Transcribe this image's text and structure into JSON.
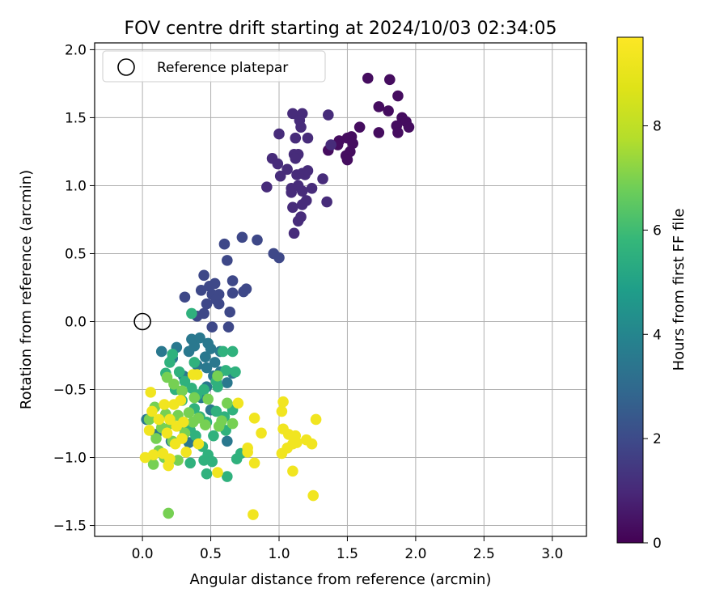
{
  "chart_data": {
    "type": "scatter",
    "title": "FOV centre drift starting at 2024/10/03 02:34:05",
    "xlabel": "Angular distance from reference (arcmin)",
    "ylabel": "Rotation from reference (arcmin)",
    "xlim": [
      -0.35,
      3.25
    ],
    "ylim": [
      -1.58,
      2.05
    ],
    "xticks": [
      "0.0",
      "0.5",
      "1.0",
      "1.5",
      "2.0",
      "2.5",
      "3.0"
    ],
    "yticks": [
      "−1.5",
      "−1.0",
      "−0.5",
      "0.0",
      "0.5",
      "1.0",
      "1.5",
      "2.0"
    ],
    "grid": true,
    "legend": {
      "placement": "upper-left",
      "entries": [
        "Reference platepar"
      ]
    },
    "reference_point": {
      "x": 0.0,
      "y": 0.0
    },
    "colorbar": {
      "label": "Hours from first FF file",
      "colormap": "viridis",
      "range": [
        0,
        9.7
      ],
      "ticks": [
        "0",
        "2",
        "4",
        "6",
        "8"
      ]
    },
    "series": [
      {
        "color_value": 0.3,
        "points": [
          [
            1.65,
            1.79
          ],
          [
            1.81,
            1.78
          ],
          [
            1.87,
            1.66
          ],
          [
            1.73,
            1.58
          ],
          [
            1.8,
            1.55
          ],
          [
            1.9,
            1.5
          ],
          [
            1.93,
            1.47
          ],
          [
            1.95,
            1.43
          ],
          [
            1.86,
            1.44
          ],
          [
            1.87,
            1.39
          ],
          [
            1.73,
            1.39
          ],
          [
            1.59,
            1.43
          ],
          [
            1.53,
            1.36
          ],
          [
            1.5,
            1.35
          ],
          [
            1.44,
            1.33
          ],
          [
            1.43,
            1.3
          ],
          [
            1.54,
            1.31
          ],
          [
            1.52,
            1.25
          ],
          [
            1.36,
            1.26
          ],
          [
            1.49,
            1.22
          ],
          [
            1.5,
            1.19
          ]
        ]
      },
      {
        "color_value": 1.1,
        "points": [
          [
            1.1,
            1.53
          ],
          [
            1.17,
            1.53
          ],
          [
            1.36,
            1.52
          ],
          [
            1.15,
            1.48
          ],
          [
            1.16,
            1.43
          ],
          [
            1.0,
            1.38
          ],
          [
            1.12,
            1.35
          ],
          [
            1.21,
            1.35
          ],
          [
            1.38,
            1.3
          ],
          [
            1.11,
            1.23
          ],
          [
            1.14,
            1.23
          ],
          [
            1.12,
            1.2
          ],
          [
            0.95,
            1.2
          ],
          [
            0.99,
            1.16
          ],
          [
            1.06,
            1.12
          ],
          [
            1.13,
            1.08
          ],
          [
            1.17,
            1.09
          ],
          [
            1.19,
            1.08
          ],
          [
            1.21,
            1.11
          ],
          [
            1.01,
            1.07
          ],
          [
            1.32,
            1.05
          ],
          [
            1.14,
            1.0
          ],
          [
            1.09,
            0.98
          ],
          [
            1.17,
            0.96
          ],
          [
            1.09,
            0.95
          ],
          [
            1.24,
            0.98
          ],
          [
            0.91,
            0.99
          ],
          [
            1.2,
            0.89
          ],
          [
            1.17,
            0.86
          ],
          [
            1.1,
            0.84
          ],
          [
            1.35,
            0.88
          ],
          [
            1.16,
            0.77
          ],
          [
            1.14,
            0.74
          ],
          [
            1.11,
            0.65
          ]
        ]
      },
      {
        "color_value": 1.9,
        "points": [
          [
            0.6,
            0.57
          ],
          [
            0.73,
            0.62
          ],
          [
            0.84,
            0.6
          ],
          [
            0.96,
            0.5
          ],
          [
            1.0,
            0.47
          ],
          [
            0.62,
            0.45
          ],
          [
            0.45,
            0.34
          ],
          [
            0.53,
            0.28
          ],
          [
            0.66,
            0.3
          ],
          [
            0.49,
            0.26
          ],
          [
            0.43,
            0.23
          ],
          [
            0.51,
            0.2
          ],
          [
            0.74,
            0.22
          ],
          [
            0.76,
            0.24
          ],
          [
            0.56,
            0.2
          ],
          [
            0.66,
            0.21
          ],
          [
            0.54,
            0.16
          ],
          [
            0.31,
            0.18
          ],
          [
            0.56,
            0.13
          ],
          [
            0.47,
            0.13
          ],
          [
            0.64,
            0.07
          ],
          [
            0.45,
            0.06
          ],
          [
            0.4,
            0.04
          ],
          [
            0.63,
            -0.04
          ],
          [
            0.51,
            -0.04
          ]
        ]
      },
      {
        "color_value": 3.5,
        "points": [
          [
            0.14,
            -0.22
          ],
          [
            0.25,
            -0.19
          ],
          [
            0.34,
            -0.22
          ],
          [
            0.38,
            -0.18
          ],
          [
            0.36,
            -0.13
          ],
          [
            0.42,
            -0.12
          ],
          [
            0.48,
            -0.16
          ],
          [
            0.5,
            -0.2
          ],
          [
            0.57,
            -0.22
          ],
          [
            0.46,
            -0.26
          ],
          [
            0.53,
            -0.3
          ],
          [
            0.4,
            -0.32
          ],
          [
            0.47,
            -0.34
          ],
          [
            0.52,
            -0.4
          ],
          [
            0.57,
            -0.37
          ],
          [
            0.62,
            -0.45
          ],
          [
            0.66,
            -0.38
          ],
          [
            0.3,
            -0.4
          ],
          [
            0.22,
            -0.27
          ],
          [
            0.47,
            -0.48
          ],
          [
            0.43,
            -0.56
          ],
          [
            0.5,
            -0.65
          ],
          [
            0.62,
            -0.88
          ],
          [
            0.03,
            -0.72
          ],
          [
            0.1,
            -0.83
          ],
          [
            0.21,
            -0.88
          ],
          [
            0.34,
            -0.89
          ]
        ]
      },
      {
        "color_value": 5.6,
        "points": [
          [
            0.36,
            0.06
          ],
          [
            0.22,
            -0.24
          ],
          [
            0.38,
            -0.3
          ],
          [
            0.59,
            -0.22
          ],
          [
            0.66,
            -0.22
          ],
          [
            0.2,
            -0.3
          ],
          [
            0.17,
            -0.38
          ],
          [
            0.27,
            -0.37
          ],
          [
            0.31,
            -0.44
          ],
          [
            0.36,
            -0.49
          ],
          [
            0.4,
            -0.54
          ],
          [
            0.45,
            -0.5
          ],
          [
            0.55,
            -0.48
          ],
          [
            0.61,
            -0.36
          ],
          [
            0.68,
            -0.37
          ],
          [
            0.54,
            -0.44
          ],
          [
            0.24,
            -0.5
          ],
          [
            0.29,
            -0.58
          ],
          [
            0.38,
            -0.64
          ],
          [
            0.42,
            -0.7
          ],
          [
            0.47,
            -0.74
          ],
          [
            0.54,
            -0.66
          ],
          [
            0.6,
            -0.7
          ],
          [
            0.66,
            -0.65
          ],
          [
            0.3,
            -0.78
          ],
          [
            0.35,
            -0.8
          ],
          [
            0.39,
            -0.84
          ],
          [
            0.44,
            -0.92
          ],
          [
            0.52,
            -0.84
          ],
          [
            0.61,
            -0.8
          ],
          [
            0.48,
            -0.98
          ],
          [
            0.35,
            -1.04
          ],
          [
            0.45,
            -1.02
          ],
          [
            0.51,
            -1.03
          ],
          [
            0.62,
            -1.14
          ],
          [
            0.47,
            -1.12
          ],
          [
            0.69,
            -1.01
          ],
          [
            0.72,
            -0.97
          ]
        ]
      },
      {
        "color_value": 6.9,
        "points": [
          [
            0.18,
            -0.41
          ],
          [
            0.23,
            -0.46
          ],
          [
            0.29,
            -0.51
          ],
          [
            0.38,
            -0.56
          ],
          [
            0.48,
            -0.57
          ],
          [
            0.55,
            -0.4
          ],
          [
            0.62,
            -0.6
          ],
          [
            0.66,
            -0.75
          ],
          [
            0.58,
            -0.73
          ],
          [
            0.46,
            -0.76
          ],
          [
            0.41,
            -0.71
          ],
          [
            0.34,
            -0.67
          ],
          [
            0.26,
            -0.69
          ],
          [
            0.21,
            -0.75
          ],
          [
            0.14,
            -0.78
          ],
          [
            0.1,
            -0.86
          ],
          [
            0.12,
            -0.95
          ],
          [
            0.16,
            -1.0
          ],
          [
            0.26,
            -1.02
          ],
          [
            0.17,
            -0.68
          ],
          [
            0.09,
            -0.63
          ],
          [
            0.05,
            -0.72
          ],
          [
            0.31,
            -0.82
          ],
          [
            0.37,
            -0.74
          ],
          [
            0.56,
            -0.77
          ],
          [
            0.19,
            -1.41
          ],
          [
            0.08,
            -1.05
          ],
          [
            0.22,
            -0.88
          ]
        ]
      },
      {
        "color_value": 9.3,
        "points": [
          [
            0.06,
            -0.52
          ],
          [
            0.37,
            -0.39
          ],
          [
            0.4,
            -0.39
          ],
          [
            0.23,
            -0.61
          ],
          [
            0.28,
            -0.58
          ],
          [
            0.16,
            -0.61
          ],
          [
            0.07,
            -0.66
          ],
          [
            0.12,
            -0.72
          ],
          [
            0.2,
            -0.72
          ],
          [
            0.25,
            -0.77
          ],
          [
            0.3,
            -0.74
          ],
          [
            0.18,
            -0.82
          ],
          [
            0.24,
            -0.9
          ],
          [
            0.29,
            -0.86
          ],
          [
            0.15,
            -0.97
          ],
          [
            0.2,
            -1.01
          ],
          [
            0.19,
            -1.06
          ],
          [
            0.08,
            -0.98
          ],
          [
            0.05,
            -0.8
          ],
          [
            0.02,
            -1.0
          ],
          [
            0.32,
            -0.96
          ],
          [
            0.41,
            -0.9
          ],
          [
            0.7,
            -0.6
          ],
          [
            0.82,
            -0.71
          ],
          [
            0.87,
            -0.82
          ],
          [
            0.77,
            -0.93
          ],
          [
            0.77,
            -0.96
          ],
          [
            0.82,
            -1.04
          ],
          [
            0.55,
            -1.11
          ],
          [
            1.03,
            -0.59
          ],
          [
            1.02,
            -0.66
          ],
          [
            1.03,
            -0.79
          ],
          [
            1.07,
            -0.83
          ],
          [
            1.12,
            -0.84
          ],
          [
            1.13,
            -0.89
          ],
          [
            1.1,
            -0.9
          ],
          [
            1.06,
            -0.93
          ],
          [
            1.2,
            -0.87
          ],
          [
            1.24,
            -0.9
          ],
          [
            1.27,
            -0.72
          ],
          [
            1.02,
            -0.97
          ],
          [
            1.1,
            -1.1
          ],
          [
            1.25,
            -1.28
          ],
          [
            0.81,
            -1.42
          ]
        ]
      }
    ]
  }
}
